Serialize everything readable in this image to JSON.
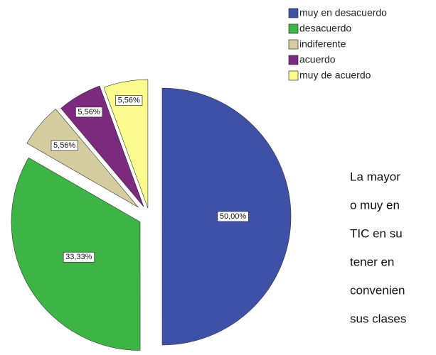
{
  "chart_data": {
    "type": "pie",
    "categories": [
      "muy en desacuerdo",
      "desacuerdo",
      "indiferente",
      "acuerdo",
      "muy de acuerdo"
    ],
    "values": [
      50,
      33.33,
      5.56,
      5.56,
      5.56
    ],
    "value_labels": [
      "50,00%",
      "33,33%",
      "5,56%",
      "5,56%",
      "5,56%"
    ],
    "colors": [
      "#3f51a6",
      "#3fb446",
      "#d5cc9f",
      "#7b2a7d",
      "#fbfa8c"
    ],
    "legend": "top-right"
  },
  "body_text": [
    "La mayor",
    "o muy en",
    "TIC en su",
    "tener en",
    "convenien",
    "sus clases"
  ]
}
